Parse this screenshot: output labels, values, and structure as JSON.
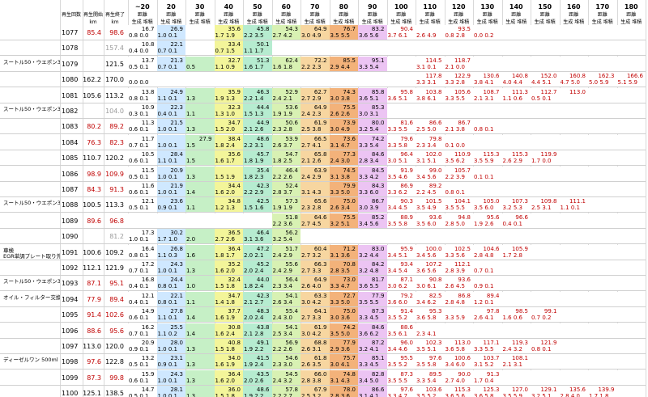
{
  "header": {
    "cols": [
      "再生回数",
      "再生開始",
      "再生終了"
    ],
    "unit": "km",
    "distance_label": "距離",
    "sub": [
      "生成",
      "堆積"
    ],
    "ranges": [
      "~20",
      "20",
      "30",
      "40",
      "50",
      "60",
      "70",
      "80",
      "90",
      "100",
      "110",
      "120",
      "130",
      "140",
      "150",
      "160",
      "170",
      "180"
    ]
  },
  "bands": [
    "#ffffff",
    "#cfe8ff",
    "#c6f0c6",
    "#f3f59a",
    "#b6ecd0",
    "#d8f1b3",
    "#f7d6a0",
    "#f3b27a",
    "#ecc4f3",
    "#ffffff",
    "#ffffff",
    "#ffffff",
    "#ffffff",
    "#ffffff",
    "#ffffff",
    "#ffffff",
    "#ffffff",
    "#ffffff"
  ],
  "notes": [
    {
      "text": "スートル50・ウエポン30",
      "row": 2
    },
    {
      "text": "スートル50・ウエポン30",
      "row": 5
    },
    {
      "text": "スートル50・ウエポン30",
      "row": 11
    },
    {
      "text": "車検",
      "row": 14
    },
    {
      "text": "EGR単調プレート取り外し",
      "row": 14
    },
    {
      "text": "スートル50・ウエポン30",
      "row": 16
    },
    {
      "text": "オイル・フィルター交換DL1",
      "row": 17
    },
    {
      "text": "ディーゼルワン 500ml",
      "row": 21
    }
  ],
  "rows": [
    {
      "id": "1077",
      "start": "85.4",
      "end": "98.6",
      "s_red": true,
      "e_red": true,
      "top": [
        "16.7",
        "26.9",
        "",
        "35.6",
        "45.8",
        "54.3",
        "64.9",
        "76.7",
        "83.2",
        "90.4",
        "",
        "93.5",
        "",
        "",
        "",
        "",
        "",
        ""
      ],
      "bot": [
        "0.8 0.0",
        "1.0 0.1",
        "",
        "1.7 1.9",
        "2.2 3.5",
        "2.7 4.2",
        "3.0 4.9",
        "3.5 5.5",
        "3.6 5.6",
        "3.7 6.1",
        "2.6 4.9",
        "0.8 2.8",
        "0.0 0.2",
        "",
        "",
        "",
        "",
        ""
      ]
    },
    {
      "id": "1078",
      "start": "",
      "end": "157.4",
      "e_gray": true,
      "top": [
        "10.8",
        "22.1",
        "",
        "33.4",
        "50.1",
        "",
        "",
        "",
        "",
        "",
        "",
        "",
        "",
        "",
        "",
        "",
        "",
        ""
      ],
      "bot": [
        "0.4 0.0",
        "0.7 0.1",
        "",
        "0.7 1.5",
        "1.1 1.7",
        "",
        "",
        "",
        "",
        "",
        "",
        "",
        "",
        "",
        "",
        "",
        "",
        ""
      ]
    },
    {
      "id": "1079",
      "start": "",
      "end": "121.5",
      "top": [
        "13.7",
        "21.3",
        "",
        "32.7",
        "51.3",
        "62.4",
        "72.2",
        "85.5",
        "95.1",
        "",
        "114.5",
        "118.7",
        "",
        "",
        "",
        "",
        "",
        ""
      ],
      "bot": [
        "0.5 0.1",
        "0.7 0.1",
        "0.5",
        "1.1 0.9",
        "1.6 1.7",
        "1.6 1.8",
        "2.2 2.3",
        "2.9 4.4",
        "3.3 5.4",
        "",
        "3.1 0.1",
        "2.1 0.0",
        "",
        "",
        "",
        "",
        "",
        ""
      ]
    },
    {
      "id": "1080",
      "start": "162.2",
      "end": "170.0",
      "top": [
        "",
        "",
        "",
        "",
        "",
        "",
        "",
        "",
        "",
        "",
        "117.8",
        "122.9",
        "130.6",
        "140.8",
        "152.0",
        "160.8",
        "162.3",
        "166.6"
      ],
      "bot": [
        "0.0 0.0",
        "",
        "",
        "",
        "",
        "",
        "",
        "",
        "",
        "",
        "3.3 3.1",
        "3.3 2.8",
        "3.8 4.1",
        "4.0 4.4",
        "4.4 5.1",
        "4.7 5.0",
        "5.0 5.9",
        "5.1 5.9"
      ]
    },
    {
      "id": "1081",
      "start": "105.6",
      "end": "113.2",
      "top": [
        "13.8",
        "24.9",
        "",
        "35.9",
        "46.3",
        "52.9",
        "62.7",
        "74.3",
        "85.8",
        "95.8",
        "103.8",
        "105.6",
        "108.7",
        "111.3",
        "112.7",
        "113.0",
        "",
        ""
      ],
      "bot": [
        "0.8 0.1",
        "1.1 0.1",
        "1.3",
        "1.9 1.3",
        "2.2 1.4",
        "2.4 2.1",
        "2.7 2.9",
        "3.0 3.8",
        "3.6 5.1",
        "3.6 5.1",
        "3.8 6.1",
        "3.3 5.5",
        "2.1 3.1",
        "1.1 0.6",
        "0.5 0.1",
        "",
        "",
        ""
      ]
    },
    {
      "id": "1082",
      "start": "",
      "end": "104.0",
      "e_gray": true,
      "top": [
        "10.9",
        "22.3",
        "",
        "32.3",
        "44.4",
        "53.6",
        "64.9",
        "75.5",
        "85.3",
        "",
        "",
        "",
        "",
        "",
        "",
        "",
        "",
        ""
      ],
      "bot": [
        "0.3 0.1",
        "0.4 0.1",
        "1.1",
        "1.3 1.0",
        "1.5 1.3",
        "1.9 1.9",
        "2.4 2.3",
        "2.6 2.6",
        "3.0 3.1",
        "",
        "",
        "",
        "",
        "",
        "",
        "",
        "",
        ""
      ]
    },
    {
      "id": "1083",
      "start": "80.2",
      "end": "89.2",
      "s_red": true,
      "e_red": true,
      "top": [
        "11.3",
        "21.5",
        "",
        "34.7",
        "44.9",
        "50.6",
        "61.9",
        "73.9",
        "80.0",
        "81.6",
        "86.6",
        "86.7",
        "",
        "",
        "",
        "",
        "",
        ""
      ],
      "bot": [
        "0.6 0.1",
        "1.0 0.1",
        "1.3",
        "1.5 2.0",
        "2.1 2.6",
        "2.3 2.8",
        "2.5 3.8",
        "3.0 4.9",
        "3.2 5.4",
        "3.3 5.5",
        "2.5 5.0",
        "2.1 3.8",
        "0.8 0.1",
        "",
        "",
        "",
        "",
        ""
      ]
    },
    {
      "id": "1084",
      "start": "76.3",
      "end": "82.3",
      "s_red": true,
      "e_red": true,
      "top": [
        "11.7",
        "",
        "27.9",
        "38.4",
        "48.6",
        "53.9",
        "66.5",
        "73.6",
        "74.2",
        "79.6",
        "79.8",
        "",
        "",
        "",
        "",
        "",
        "",
        ""
      ],
      "bot": [
        "0.7 0.1",
        "1.0 0.1",
        "1.5",
        "1.8 2.4",
        "2.2 3.1",
        "2.6 3.7",
        "2.7 4.1",
        "3.1 4.7",
        "3.3 5.4",
        "3.3 5.8",
        "2.3 3.4",
        "0.1 0.0",
        "",
        "",
        "",
        "",
        "",
        ""
      ]
    },
    {
      "id": "1085",
      "start": "110.7",
      "end": "120.2",
      "top": [
        "10.5",
        "28.4",
        "",
        "35.6",
        "45.7",
        "54.7",
        "65.8",
        "77.3",
        "84.6",
        "96.4",
        "102.0",
        "110.9",
        "115.3",
        "115.3",
        "119.9",
        "",
        "",
        ""
      ],
      "bot": [
        "0.6 0.1",
        "1.1 0.1",
        "1.5",
        "1.6 1.7",
        "1.8 1.9",
        "1.8 2.5",
        "2.1 2.6",
        "2.4 3.0",
        "2.8 3.4",
        "3.0 5.1",
        "3.1 5.1",
        "3.5 6.2",
        "3.5 5.9",
        "2.6 2.9",
        "1.7 0.0",
        "",
        "",
        ""
      ]
    },
    {
      "id": "1086",
      "start": "98.9",
      "end": "109.9",
      "s_red": true,
      "e_red": true,
      "top": [
        "11.5",
        "20.9",
        "",
        "",
        "35.4",
        "46.4",
        "63.9",
        "74.5",
        "84.5",
        "91.9",
        "99.0",
        "105.7",
        "",
        "",
        "",
        "",
        "",
        ""
      ],
      "bot": [
        "0.5 0.1",
        "1.0 0.1",
        "1.3",
        "1.5 1.9",
        "1.8 2.3",
        "2.2 2.6",
        "2.4 2.9",
        "3.1 3.8",
        "3.3 4.2",
        "3.5 4.6",
        "3.4 5.6",
        "2.2 3.9",
        "0.1 0.1",
        "",
        "",
        "",
        "",
        ""
      ]
    },
    {
      "id": "1087",
      "start": "84.3",
      "end": "91.3",
      "s_red": true,
      "e_red": true,
      "top": [
        "11.6",
        "21.9",
        "",
        "34.4",
        "42.3",
        "52.4",
        "",
        "79.9",
        "84.3",
        "86.9",
        "89.2",
        "",
        "",
        "",
        "",
        "",
        "",
        ""
      ],
      "bot": [
        "0.6 0.1",
        "1.0 0.1",
        "1.4",
        "1.6 2.0",
        "2.2 2.9",
        "2.8 3.7",
        "3.1 4.3",
        "3.3 5.0",
        "3.3 6.0",
        "3.3 6.2",
        "2.2 4.5",
        "0.8 0.1",
        "",
        "",
        "",
        "",
        "",
        ""
      ]
    },
    {
      "id": "1088",
      "start": "100.5",
      "end": "113.3",
      "top": [
        "12.1",
        "23.6",
        "",
        "34.8",
        "42.5",
        "57.3",
        "65.6",
        "75.0",
        "86.7",
        "90.3",
        "101.5",
        "104.1",
        "105.0",
        "107.3",
        "109.8",
        "111.1",
        "",
        ""
      ],
      "bot": [
        "0.5 0.1",
        "0.9 0.1",
        "1.1",
        "1.2 1.3",
        "1.5 1.6",
        "1.9 1.9",
        "2.3 2.8",
        "2.6 3.4",
        "3.0 3.9",
        "3.4 4.5",
        "3.5 4.9",
        "3.5 5.5",
        "3.5 6.0",
        "3.2 5.3",
        "2.5 3.1",
        "1.1 0.1",
        "",
        ""
      ]
    },
    {
      "id": "1089",
      "start": "89.6",
      "end": "96.8",
      "s_red": true,
      "e_red": true,
      "top": [
        "",
        "",
        "",
        "",
        "",
        "51.8",
        "64.6",
        "75.5",
        "85.2",
        "88.9",
        "93.6",
        "94.8",
        "95.6",
        "96.6",
        "",
        "",
        "",
        ""
      ],
      "bot": [
        "",
        "",
        "",
        "",
        "",
        "2.2 3.6",
        "2.7 4.5",
        "3.2 5.1",
        "3.4 5.6",
        "3.5 5.8",
        "3.5 6.0",
        "2.8 5.0",
        "1.9 2.6",
        "0.4 0.1",
        "",
        "",
        "",
        ""
      ]
    },
    {
      "id": "1090",
      "start": "",
      "end": "81.2",
      "e_gray": true,
      "top": [
        "17.3",
        "30.2",
        "",
        "36.5",
        "46.4",
        "56.2",
        "",
        "",
        "",
        "",
        "",
        "",
        "",
        "",
        "",
        "",
        "",
        ""
      ],
      "bot": [
        "1.0 0.1",
        "1.7 1.0",
        "2.0",
        "2.7 2.6",
        "3.1 3.6",
        "3.2 5.4",
        "",
        "",
        "",
        "",
        "",
        "",
        "",
        "",
        "",
        "",
        "",
        ""
      ]
    },
    {
      "id": "1091",
      "start": "100.6",
      "end": "109.2",
      "top": [
        "16.4",
        "26.8",
        "",
        "36.4",
        "47.2",
        "51.7",
        "60.4",
        "71.2",
        "83.0",
        "95.9",
        "100.0",
        "102.5",
        "104.6",
        "105.9",
        "",
        "",
        "",
        ""
      ],
      "bot": [
        "0.8 0.1",
        "1.1 0.3",
        "1.6",
        "1.8 1.7",
        "2.0 2.1",
        "2.4 2.9",
        "2.7 3.2",
        "3.1 3.6",
        "3.2 4.4",
        "3.4 5.1",
        "3.4 5.6",
        "3.3 5.6",
        "2.8 4.8",
        "1.7 2.8",
        "",
        "",
        "",
        ""
      ]
    },
    {
      "id": "1092",
      "start": "112.1",
      "end": "121.9",
      "top": [
        "17.2",
        "24.3",
        "",
        "35.2",
        "45.2",
        "55.6",
        "66.3",
        "70.8",
        "84.2",
        "93.4",
        "107.2",
        "112.1",
        "",
        "",
        "",
        "",
        "",
        ""
      ],
      "bot": [
        "0.7 0.1",
        "1.0 0.1",
        "1.3",
        "1.6 2.0",
        "2.0 2.4",
        "2.4 2.9",
        "2.7 3.3",
        "2.8 3.5",
        "3.2 4.8",
        "3.4 5.4",
        "3.6 5.6",
        "2.8 3.9",
        "0.7 0.1",
        "",
        "",
        "",
        "",
        ""
      ]
    },
    {
      "id": "1093",
      "start": "87.1",
      "end": "95.1",
      "s_red": true,
      "e_red": true,
      "top": [
        "16.8",
        "24.4",
        "",
        "32.4",
        "44.0",
        "56.4",
        "64.9",
        "73.0",
        "81.7",
        "87.1",
        "90.8",
        "93.6",
        "",
        "",
        "",
        "",
        "",
        ""
      ],
      "bot": [
        "0.4 0.1",
        "0.8 0.1",
        "1.0",
        "1.5 1.8",
        "1.8 2.4",
        "2.3 3.4",
        "2.6 4.0",
        "3.3 4.7",
        "3.6 5.5",
        "3.0 6.2",
        "3.0 6.1",
        "2.6 4.5",
        "0.9 0.1",
        "",
        "",
        "",
        "",
        ""
      ]
    },
    {
      "id": "1094",
      "start": "77.9",
      "end": "89.4",
      "s_red": true,
      "e_red": true,
      "top": [
        "12.1",
        "22.1",
        "",
        "34.7",
        "42.3",
        "54.1",
        "63.3",
        "72.7",
        "77.9",
        "79.2",
        "82.5",
        "86.8",
        "89.4",
        "",
        "",
        "",
        "",
        ""
      ],
      "bot": [
        "0.4 0.1",
        "0.8 0.1",
        "1.1",
        "1.4 1.8",
        "2.1 2.7",
        "2.6 3.4",
        "3.0 4.2",
        "3.3 5.0",
        "3.5 5.5",
        "3.6 6.0",
        "3.4 6.2",
        "2.8 4.8",
        "1.2 0.1",
        "",
        "",
        "",
        "",
        ""
      ]
    },
    {
      "id": "1095",
      "start": "91.4",
      "end": "102.6",
      "s_red": true,
      "e_red": true,
      "top": [
        "14.9",
        "27.8",
        "",
        "37.7",
        "48.3",
        "55.4",
        "64.1",
        "75.0",
        "87.3",
        "91.4",
        "95.3",
        "",
        "97.8",
        "98.5",
        "99.1",
        "",
        "",
        ""
      ],
      "bot": [
        "0.6 0.1",
        "1.1 0.1",
        "1.4",
        "1.6 1.9",
        "2.0 2.4",
        "2.4 3.0",
        "2.7 3.3",
        "3.0 3.6",
        "3.3 4.5",
        "3.5 5.2",
        "3.6 5.8",
        "3.3 5.9",
        "2.6 4.1",
        "1.6 0.6",
        "0.7 0.2",
        "",
        "",
        ""
      ]
    },
    {
      "id": "1096",
      "start": "88.6",
      "end": "95.6",
      "s_red": true,
      "e_red": true,
      "top": [
        "16.2",
        "25.5",
        "",
        "30.8",
        "43.8",
        "54.1",
        "61.9",
        "74.2",
        "84.6",
        "88.6",
        "",
        "",
        "",
        "",
        "",
        "",
        "",
        ""
      ],
      "bot": [
        "0.7 0.1",
        "1.1 0.2",
        "1.4",
        "1.6 2.4",
        "2.1 2.8",
        "2.5 3.4",
        "3.0 4.2",
        "3.5 5.0",
        "3.6 6.2",
        "3.5 6.1",
        "2.3 4.1",
        "",
        "",
        "",
        "",
        "",
        "",
        ""
      ]
    },
    {
      "id": "1097",
      "start": "113.0",
      "end": "120.0",
      "top": [
        "20.9",
        "28.0",
        "",
        "40.8",
        "49.1",
        "56.9",
        "68.8",
        "77.9",
        "87.2",
        "96.0",
        "102.3",
        "113.0",
        "117.1",
        "119.3",
        "121.9",
        "",
        "",
        ""
      ],
      "bot": [
        "0.9 0.1",
        "1.0 0.1",
        "1.3",
        "1.5 1.8",
        "1.9 2.2",
        "2.2 2.6",
        "2.6 3.1",
        "2.9 3.6",
        "3.2 4.1",
        "3.4 4.6",
        "3.5 5.1",
        "3.6 5.8",
        "3.3 5.5",
        "2.4 3.2",
        "0.8 0.1",
        "",
        "",
        ""
      ]
    },
    {
      "id": "1098",
      "start": "97.6",
      "end": "122.8",
      "s_red": true,
      "top": [
        "13.2",
        "23.1",
        "",
        "34.0",
        "41.5",
        "54.6",
        "61.8",
        "75.7",
        "85.1",
        "95.5",
        "97.6",
        "100.6",
        "103.7",
        "108.1",
        "",
        "",
        "",
        ""
      ],
      "bot": [
        "0.5 0.1",
        "0.9 0.1",
        "1.3",
        "1.6 1.9",
        "1.9 2.4",
        "2.3 3.0",
        "2.6 3.5",
        "3.0 4.1",
        "3.3 4.5",
        "3.5 5.2",
        "3.5 5.8",
        "3.4 6.0",
        "3.1 5.2",
        "2.1 3.1",
        "",
        "",
        "",
        ""
      ]
    },
    {
      "id": "1099",
      "start": "87.3",
      "end": "99.8",
      "s_red": true,
      "e_red": true,
      "top": [
        "15.9",
        "24.3",
        "",
        "36.4",
        "43.5",
        "54.5",
        "66.0",
        "74.8",
        "82.8",
        "87.3",
        "89.5",
        "90.0",
        "91.3",
        "",
        "",
        "",
        "",
        ""
      ],
      "bot": [
        "0.6 0.1",
        "1.0 0.1",
        "1.3",
        "1.6 2.0",
        "2.0 2.6",
        "2.4 3.2",
        "2.8 3.8",
        "3.1 4.3",
        "3.4 5.0",
        "3.5 5.5",
        "3.3 5.4",
        "2.7 4.0",
        "1.7 0.4",
        "",
        "",
        "",
        "",
        ""
      ]
    },
    {
      "id": "1100",
      "start": "125.1",
      "end": "138.5",
      "top": [
        "14.7",
        "28.1",
        "",
        "36.0",
        "48.6",
        "57.8",
        "67.9",
        "78.0",
        "86.6",
        "97.6",
        "103.6",
        "115.3",
        "125.3",
        "127.0",
        "129.1",
        "135.6",
        "139.9",
        ""
      ],
      "bot": [
        "0.5 0.1",
        "1.0 0.1",
        "1.3",
        "1.5 1.8",
        "1.9 2.2",
        "2.2 2.7",
        "2.5 3.2",
        "2.8 3.6",
        "3.1 4.1",
        "3.3 4.7",
        "3.5 5.2",
        "3.6 5.6",
        "3.6 5.8",
        "3.5 5.9",
        "3.2 5.1",
        "2.8 4.0",
        "1.7 1.8",
        ""
      ]
    }
  ]
}
